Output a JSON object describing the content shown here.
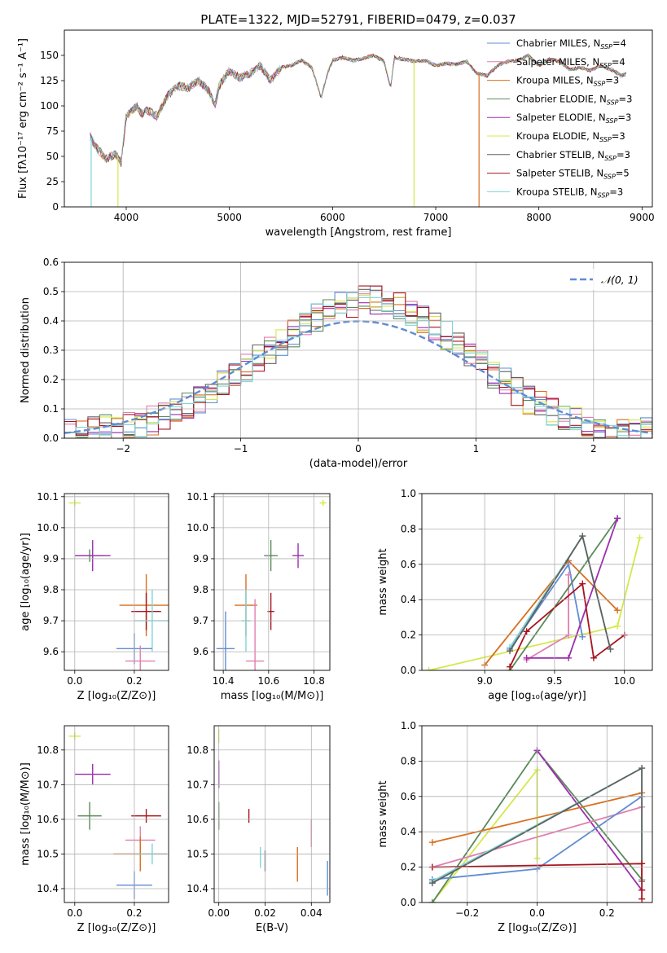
{
  "figure": {
    "title": "PLATE=1322, MJD=52791, FIBERID=0479, z=0.037"
  },
  "colors": {
    "Chabrier MILES": "#5f8dd3",
    "Salpeter MILES": "#e07fb0",
    "Kroupa MILES": "#d86f1f",
    "Chabrier ELODIE": "#5a8a5a",
    "Salpeter ELODIE": "#9b2fae",
    "Kroupa ELODIE": "#d4e84a",
    "Chabrier STELIB": "#606060",
    "Salpeter STELIB": "#a8141e",
    "Kroupa STELIB": "#7dd6d6",
    "normal_curve": "#5f8dd3"
  },
  "chart_data": [
    {
      "id": "spectrum",
      "type": "line",
      "xlabel": "wavelength [Angstrom, rest frame]",
      "ylabel": "Flux [fλ10⁻¹⁷ erg cm⁻² s⁻¹ A⁻¹]",
      "xlim": [
        3400,
        9100
      ],
      "ylim": [
        0,
        175
      ],
      "xticks": [
        4000,
        5000,
        6000,
        7000,
        8000,
        9000
      ],
      "yticks": [
        0,
        25,
        50,
        75,
        100,
        125,
        150
      ],
      "grid": false,
      "legend_position": "top-right",
      "legend": [
        {
          "series": "Chabrier MILES",
          "label": "Chabrier MILES, N",
          "sub": "SSP",
          "tail": "=4"
        },
        {
          "series": "Salpeter MILES",
          "label": "Salpeter MILES, N",
          "sub": "SSP",
          "tail": "=4"
        },
        {
          "series": "Kroupa MILES",
          "label": "Kroupa MILES, N",
          "sub": "SSP",
          "tail": "=3"
        },
        {
          "series": "Chabrier ELODIE",
          "label": "Chabrier ELODIE, N",
          "sub": "SSP",
          "tail": "=3"
        },
        {
          "series": "Salpeter ELODIE",
          "label": "Salpeter ELODIE, N",
          "sub": "SSP",
          "tail": "=3"
        },
        {
          "series": "Kroupa ELODIE",
          "label": "Kroupa ELODIE, N",
          "sub": "SSP",
          "tail": "=3"
        },
        {
          "series": "Chabrier STELIB",
          "label": "Chabrier STELIB, N",
          "sub": "SSP",
          "tail": "=3"
        },
        {
          "series": "Salpeter STELIB",
          "label": "Salpeter STELIB, N",
          "sub": "SSP",
          "tail": "=5"
        },
        {
          "series": "Kroupa STELIB",
          "label": "Kroupa STELIB, N",
          "sub": "SSP",
          "tail": "=3"
        }
      ],
      "series": [
        {
          "name": "Kroupa STELIB",
          "x": [
            3650,
            3700,
            3800,
            3900,
            3950,
            4000,
            4050,
            4100,
            4150,
            4200,
            4300,
            4400,
            4500,
            4600,
            4700,
            4800,
            4861,
            4900,
            5000,
            5100,
            5200,
            5300,
            5400,
            5500,
            5600,
            5700,
            5800,
            5890,
            5950,
            6000,
            6100,
            6200,
            6300,
            6400,
            6500,
            6563,
            6600,
            6700,
            6800,
            6900,
            7000,
            7100,
            7200,
            7300,
            7400,
            7500,
            7600,
            7700,
            7800,
            7900,
            8000,
            8100,
            8200,
            8300,
            8400,
            8500,
            8600,
            8700,
            8800,
            8850
          ],
          "y": [
            70,
            60,
            48,
            52,
            44,
            90,
            95,
            100,
            92,
            96,
            90,
            110,
            120,
            118,
            125,
            115,
            100,
            120,
            135,
            128,
            132,
            140,
            125,
            138,
            140,
            145,
            138,
            108,
            132,
            145,
            148,
            145,
            147,
            150,
            144,
            118,
            148,
            146,
            144,
            145,
            140,
            142,
            141,
            144,
            132,
            130,
            140,
            144,
            145,
            150,
            140,
            146,
            144,
            136,
            138,
            135,
            140,
            136,
            130,
            132
          ]
        }
      ],
      "spikes": [
        {
          "series": "Kroupa STELIB",
          "x": 3660,
          "y": 0
        },
        {
          "series": "Kroupa ELODIE",
          "x": 3920,
          "y": 0
        },
        {
          "series": "Kroupa ELODIE",
          "x": 6790,
          "y": 0
        },
        {
          "series": "Kroupa MILES",
          "x": 7420,
          "y": 0
        }
      ]
    },
    {
      "id": "residuals",
      "type": "step",
      "xlabel": "(data-model)/error",
      "ylabel": "Normed distribution",
      "xlim": [
        -2.5,
        2.5
      ],
      "ylim": [
        0,
        0.6
      ],
      "xticks": [
        -2,
        -1,
        0,
        1,
        2
      ],
      "yticks": [
        0.0,
        0.1,
        0.2,
        0.3,
        0.4,
        0.5,
        0.6
      ],
      "grid": true,
      "legend_position": "top-right",
      "legend": [
        {
          "label": "𝒩(0, 1)"
        }
      ],
      "bin_edges": [
        -2.5,
        -2.4,
        -2.3,
        -2.2,
        -2.1,
        -2.0,
        -1.9,
        -1.8,
        -1.7,
        -1.6,
        -1.5,
        -1.4,
        -1.3,
        -1.2,
        -1.1,
        -1.0,
        -0.9,
        -0.8,
        -0.7,
        -0.6,
        -0.5,
        -0.4,
        -0.3,
        -0.2,
        -0.1,
        0.0,
        0.1,
        0.2,
        0.3,
        0.4,
        0.5,
        0.6,
        0.7,
        0.8,
        0.9,
        1.0,
        1.1,
        1.2,
        1.3,
        1.4,
        1.5,
        1.6,
        1.7,
        1.8,
        1.9,
        2.0,
        2.1,
        2.2,
        2.3,
        2.4,
        2.5
      ],
      "base_hist": [
        0.02,
        0.02,
        0.03,
        0.03,
        0.04,
        0.05,
        0.05,
        0.06,
        0.08,
        0.09,
        0.11,
        0.13,
        0.16,
        0.18,
        0.21,
        0.24,
        0.27,
        0.3,
        0.33,
        0.36,
        0.38,
        0.41,
        0.43,
        0.45,
        0.46,
        0.47,
        0.47,
        0.46,
        0.45,
        0.43,
        0.41,
        0.38,
        0.35,
        0.32,
        0.28,
        0.25,
        0.22,
        0.19,
        0.16,
        0.13,
        0.11,
        0.09,
        0.07,
        0.06,
        0.05,
        0.04,
        0.03,
        0.03,
        0.02,
        0.02
      ],
      "series": [
        "Chabrier MILES",
        "Salpeter MILES",
        "Kroupa MILES",
        "Chabrier ELODIE",
        "Salpeter ELODIE",
        "Kroupa ELODIE",
        "Chabrier STELIB",
        "Salpeter STELIB",
        "Kroupa STELIB"
      ],
      "normal": {
        "mean": 0,
        "sigma": 1
      }
    },
    {
      "id": "age_vs_Z",
      "type": "errorbar",
      "xlabel": "Z [log₁₀(Z/Z⊙)]",
      "ylabel": "age  [log₁₀(age/yr)]",
      "xlim": [
        -0.035,
        0.315
      ],
      "ylim": [
        9.54,
        10.11
      ],
      "xticks": [
        0.0,
        0.2
      ],
      "yticks": [
        9.6,
        9.7,
        9.8,
        9.9,
        10.0,
        10.1
      ],
      "grid": true,
      "points": [
        {
          "series": "Kroupa ELODIE",
          "x": 0.0,
          "y": 10.08,
          "xe": 0.02,
          "ye": 0.01
        },
        {
          "series": "Chabrier ELODIE",
          "x": 0.05,
          "y": 9.91,
          "xe": 0.05,
          "ye": 0.02
        },
        {
          "series": "Salpeter ELODIE",
          "x": 0.06,
          "y": 9.91,
          "xe": 0.06,
          "ye": 0.05
        },
        {
          "series": "Kroupa MILES",
          "x": 0.24,
          "y": 9.75,
          "xe": 0.09,
          "ye": 0.1
        },
        {
          "series": "Salpeter STELIB",
          "x": 0.24,
          "y": 9.73,
          "xe": 0.05,
          "ye": 0.06
        },
        {
          "series": "Kroupa STELIB",
          "x": 0.26,
          "y": 9.7,
          "xe": 0.06,
          "ye": 0.1
        },
        {
          "series": "Chabrier MILES",
          "x": 0.2,
          "y": 9.61,
          "xe": 0.06,
          "ye": 0.05
        },
        {
          "series": "Salpeter MILES",
          "x": 0.22,
          "y": 9.57,
          "xe": 0.05,
          "ye": 0.05
        }
      ]
    },
    {
      "id": "age_vs_mass",
      "type": "errorbar",
      "xlabel": "mass [log₁₀(M/M⊙)]",
      "ylabel": "",
      "xlim": [
        10.36,
        10.87
      ],
      "ylim": [
        9.54,
        10.11
      ],
      "xticks": [
        10.4,
        10.6,
        10.8
      ],
      "yticks": [
        9.6,
        9.7,
        9.8,
        9.9,
        10.0,
        10.1
      ],
      "grid": true,
      "points": [
        {
          "series": "Kroupa ELODIE",
          "x": 10.84,
          "y": 10.08,
          "xe": 0.015,
          "ye": 0.01
        },
        {
          "series": "Chabrier ELODIE",
          "x": 10.61,
          "y": 9.91,
          "xe": 0.03,
          "ye": 0.05
        },
        {
          "series": "Salpeter ELODIE",
          "x": 10.73,
          "y": 9.91,
          "xe": 0.025,
          "ye": 0.04
        },
        {
          "series": "Kroupa MILES",
          "x": 10.5,
          "y": 9.75,
          "xe": 0.05,
          "ye": 0.1
        },
        {
          "series": "Salpeter STELIB",
          "x": 10.61,
          "y": 9.73,
          "xe": 0.015,
          "ye": 0.06
        },
        {
          "series": "Kroupa STELIB",
          "x": 10.5,
          "y": 9.7,
          "xe": 0.02,
          "ye": 0.1
        },
        {
          "series": "Chabrier MILES",
          "x": 10.41,
          "y": 9.61,
          "xe": 0.04,
          "ye": 0.12
        },
        {
          "series": "Salpeter MILES",
          "x": 10.54,
          "y": 9.57,
          "xe": 0.04,
          "ye": 0.2
        }
      ]
    },
    {
      "id": "weight_vs_age",
      "type": "line",
      "xlabel": "age  [log₁₀(age/yr)]",
      "ylabel": "mass weight",
      "xlim": [
        8.55,
        10.2
      ],
      "ylim": [
        0,
        1.0
      ],
      "xticks": [
        9.0,
        9.5,
        10.0
      ],
      "yticks": [
        0.0,
        0.2,
        0.4,
        0.6,
        0.8,
        1.0
      ],
      "grid": true,
      "series": [
        {
          "name": "Kroupa ELODIE",
          "x": [
            8.6,
            9.95,
            10.11
          ],
          "y": [
            0.0,
            0.25,
            0.75
          ]
        },
        {
          "name": "Kroupa MILES",
          "x": [
            9.0,
            9.6,
            9.95
          ],
          "y": [
            0.03,
            0.62,
            0.34
          ]
        },
        {
          "name": "Chabrier MILES",
          "x": [
            9.18,
            9.6,
            9.7
          ],
          "y": [
            0.12,
            0.6,
            0.19
          ]
        },
        {
          "name": "Salpeter MILES",
          "x": [
            9.3,
            9.6,
            9.6
          ],
          "y": [
            0.06,
            0.2,
            0.54
          ]
        },
        {
          "name": "Chabrier ELODIE",
          "x": [
            9.18,
            9.95
          ],
          "y": [
            0.0,
            0.86
          ]
        },
        {
          "name": "Salpeter ELODIE",
          "x": [
            9.3,
            9.6,
            9.95
          ],
          "y": [
            0.07,
            0.07,
            0.86
          ]
        },
        {
          "name": "Salpeter STELIB",
          "x": [
            9.18,
            9.3,
            9.7,
            9.78,
            10.0
          ],
          "y": [
            0.02,
            0.22,
            0.49,
            0.07,
            0.2
          ]
        },
        {
          "name": "Kroupa STELIB",
          "x": [
            9.18,
            9.7,
            9.9
          ],
          "y": [
            0.13,
            0.76,
            0.12
          ]
        },
        {
          "name": "Chabrier STELIB",
          "x": [
            9.18,
            9.7,
            9.9
          ],
          "y": [
            0.11,
            0.76,
            0.12
          ]
        }
      ]
    },
    {
      "id": "mass_vs_Z",
      "type": "errorbar",
      "xlabel": "Z [log₁₀(Z/Z⊙)]",
      "ylabel": "mass [log₁₀(M/M⊙)]",
      "xlim": [
        -0.035,
        0.315
      ],
      "ylim": [
        10.36,
        10.87
      ],
      "xticks": [
        0.0,
        0.2
      ],
      "yticks": [
        10.4,
        10.5,
        10.6,
        10.7,
        10.8
      ],
      "grid": true,
      "points": [
        {
          "series": "Kroupa ELODIE",
          "x": 0.0,
          "y": 10.84,
          "xe": 0.02,
          "ye": 0.01
        },
        {
          "series": "Salpeter ELODIE",
          "x": 0.06,
          "y": 10.73,
          "xe": 0.06,
          "ye": 0.03
        },
        {
          "series": "Chabrier ELODIE",
          "x": 0.05,
          "y": 10.61,
          "xe": 0.04,
          "ye": 0.04
        },
        {
          "series": "Salpeter STELIB",
          "x": 0.24,
          "y": 10.61,
          "xe": 0.05,
          "ye": 0.02
        },
        {
          "series": "Salpeter MILES",
          "x": 0.22,
          "y": 10.54,
          "xe": 0.05,
          "ye": 0.04
        },
        {
          "series": "Kroupa MILES",
          "x": 0.22,
          "y": 10.5,
          "xe": 0.09,
          "ye": 0.05
        },
        {
          "series": "Kroupa STELIB",
          "x": 0.26,
          "y": 10.5,
          "xe": 0.05,
          "ye": 0.03
        },
        {
          "series": "Chabrier MILES",
          "x": 0.2,
          "y": 10.41,
          "xe": 0.06,
          "ye": 0.04
        }
      ]
    },
    {
      "id": "mass_vs_ebv",
      "type": "errorbar",
      "xlabel": "E(B-V)",
      "ylabel": "",
      "xlim": [
        -0.002,
        0.048
      ],
      "ylim": [
        10.36,
        10.87
      ],
      "xticks": [
        0.0,
        0.02,
        0.04
      ],
      "yticks": [
        10.4,
        10.5,
        10.6,
        10.7,
        10.8
      ],
      "grid": true,
      "points": [
        {
          "series": "Kroupa ELODIE",
          "x": 0.0,
          "y": 10.84,
          "xe": 0.0,
          "ye": 0.02
        },
        {
          "series": "Salpeter ELODIE",
          "x": 0.0,
          "y": 10.73,
          "xe": 0.0,
          "ye": 0.04
        },
        {
          "series": "Chabrier ELODIE",
          "x": 0.0,
          "y": 10.61,
          "xe": 0.0,
          "ye": 0.04
        },
        {
          "series": "Salpeter STELIB",
          "x": 0.013,
          "y": 10.61,
          "xe": 0.0,
          "ye": 0.02
        },
        {
          "series": "Salpeter MILES",
          "x": 0.04,
          "y": 10.56,
          "xe": 0.0,
          "ye": 0.04
        },
        {
          "series": "Kroupa STELIB",
          "x": 0.018,
          "y": 10.49,
          "xe": 0.0,
          "ye": 0.03
        },
        {
          "series": "Chabrier STELIB",
          "x": 0.02,
          "y": 10.48,
          "xe": 0.0,
          "ye": 0.03
        },
        {
          "series": "Kroupa MILES",
          "x": 0.034,
          "y": 10.47,
          "xe": 0.0,
          "ye": 0.05
        },
        {
          "series": "Chabrier MILES",
          "x": 0.047,
          "y": 10.43,
          "xe": 0.0,
          "ye": 0.05
        }
      ]
    },
    {
      "id": "weight_vs_Z",
      "type": "line",
      "xlabel": "Z [log₁₀(Z/Z⊙)]",
      "ylabel": "mass weight",
      "xlim": [
        -0.33,
        0.33
      ],
      "ylim": [
        0,
        1.0
      ],
      "xticks": [
        -0.2,
        0.0,
        0.2
      ],
      "yticks": [
        0.0,
        0.2,
        0.4,
        0.6,
        0.8,
        1.0
      ],
      "grid": true,
      "series": [
        {
          "name": "Kroupa ELODIE",
          "x": [
            -0.3,
            0.0,
            0.0
          ],
          "y": [
            0.0,
            0.75,
            0.25
          ]
        },
        {
          "name": "Chabrier ELODIE",
          "x": [
            -0.3,
            0.0,
            0.3
          ],
          "y": [
            0.0,
            0.86,
            0.13
          ]
        },
        {
          "name": "Salpeter ELODIE",
          "x": [
            0.0,
            0.3
          ],
          "y": [
            0.86,
            0.07
          ]
        },
        {
          "name": "Kroupa MILES",
          "x": [
            -0.3,
            0.3
          ],
          "y": [
            0.34,
            0.62
          ]
        },
        {
          "name": "Salpeter MILES",
          "x": [
            -0.3,
            0.3
          ],
          "y": [
            0.2,
            0.54
          ]
        },
        {
          "name": "Chabrier MILES",
          "x": [
            -0.3,
            0.0,
            0.3
          ],
          "y": [
            0.13,
            0.19,
            0.6
          ]
        },
        {
          "name": "Kroupa STELIB",
          "x": [
            -0.3,
            0.3,
            0.3
          ],
          "y": [
            0.12,
            0.76,
            0.13
          ]
        },
        {
          "name": "Chabrier STELIB",
          "x": [
            -0.3,
            0.3,
            0.3
          ],
          "y": [
            0.11,
            0.76,
            0.12
          ]
        },
        {
          "name": "Salpeter STELIB",
          "x": [
            -0.3,
            0.3,
            0.3,
            0.3
          ],
          "y": [
            0.2,
            0.22,
            0.07,
            0.02
          ]
        }
      ]
    }
  ]
}
